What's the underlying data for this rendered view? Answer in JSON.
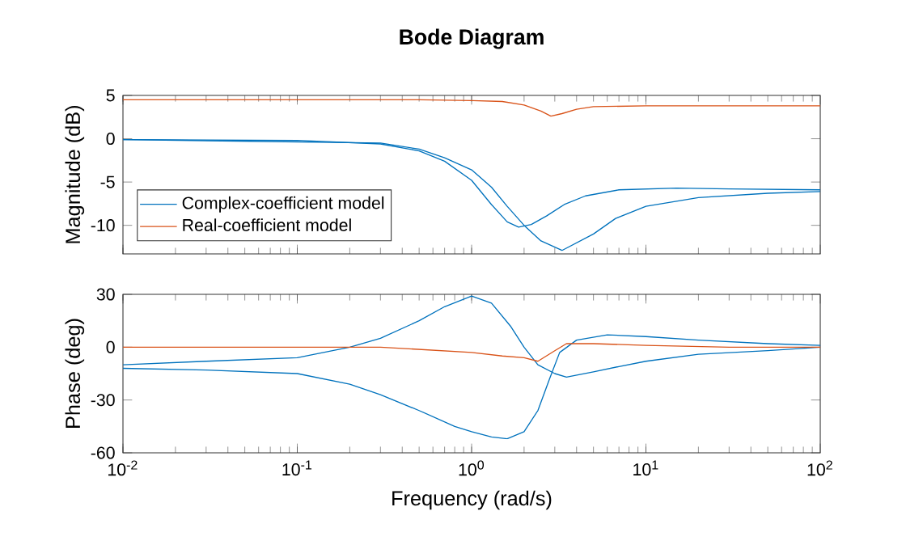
{
  "chart_data": [
    {
      "type": "line",
      "title": "Bode Diagram",
      "ylabel": "Magnitude (dB)",
      "xlim": [
        0.01,
        100
      ],
      "ylim": [
        -13.3,
        5
      ],
      "yticks": [
        -10,
        -5,
        0,
        5
      ],
      "log": "x",
      "xticks": [
        {
          "value": 0.01,
          "label": null
        },
        {
          "value": 0.1,
          "label": null
        },
        {
          "value": 1,
          "label": null
        },
        {
          "value": 10,
          "label": null
        },
        {
          "value": 100,
          "label": null
        }
      ],
      "tick_labels": "y",
      "legend": "bottom left",
      "grid": false,
      "series": [
        {
          "name": "Complex-coefficient model",
          "color": "#0072bd",
          "x": [
            0.01,
            0.1,
            0.3,
            0.5,
            0.7,
            1,
            1.3,
            1.6,
            1.86,
            2.2,
            2.7,
            3.4,
            4.5,
            7,
            15,
            30,
            100
          ],
          "values": [
            -0.1,
            -0.2,
            -0.6,
            -1.4,
            -2.6,
            -4.8,
            -7.6,
            -9.6,
            -10.2,
            -9.9,
            -8.9,
            -7.6,
            -6.6,
            -5.9,
            -5.7,
            -5.8,
            -5.9
          ]
        },
        {
          "color": "#0072bd",
          "x": [
            0.01,
            0.3,
            0.5,
            0.7,
            1,
            1.3,
            1.6,
            2,
            2.5,
            3.3,
            5,
            6.7,
            10,
            20,
            50,
            100
          ],
          "values": [
            -0.1,
            -0.5,
            -1.2,
            -2.2,
            -3.6,
            -5.6,
            -7.8,
            -10,
            -11.8,
            -12.9,
            -11,
            -9.2,
            -7.8,
            -6.8,
            -6.3,
            -6.1
          ]
        },
        {
          "name": "Real-coefficient model",
          "color": "#d95319",
          "x": [
            0.01,
            0.1,
            0.5,
            1,
            1.5,
            2,
            2.5,
            2.85,
            3.3,
            4,
            5,
            10,
            100
          ],
          "values": [
            4.5,
            4.5,
            4.5,
            4.4,
            4.3,
            3.9,
            3.2,
            2.6,
            2.9,
            3.4,
            3.7,
            3.8,
            3.8
          ]
        }
      ]
    },
    {
      "type": "line",
      "xlabel": "Frequency (rad/s)",
      "ylabel": "Phase (deg)",
      "xlim": [
        0.01,
        100
      ],
      "ylim": [
        -60,
        30
      ],
      "yticks": [
        -60,
        -30,
        0,
        30
      ],
      "log": "x",
      "xticks": [
        {
          "value": 0.01,
          "label": "10$^{-2}$"
        },
        {
          "value": 0.1,
          "label": "10$^{-1}$"
        },
        {
          "value": 1,
          "label": "10$^{0}$"
        },
        {
          "value": 10,
          "label": "10$^{1}$"
        },
        {
          "value": 100,
          "label": "10$^{2}$"
        }
      ],
      "grid": false,
      "series": [
        {
          "color": "#0072bd",
          "x": [
            0.01,
            0.03,
            0.1,
            0.2,
            0.3,
            0.5,
            0.7,
            1,
            1.3,
            1.67,
            2,
            2.4,
            3,
            3.5,
            5,
            7,
            10,
            20,
            50,
            100
          ],
          "values": [
            -10,
            -8,
            -6,
            0,
            5,
            15,
            23,
            29,
            25,
            12,
            0,
            -10,
            -15,
            -17,
            -14,
            -11,
            -8,
            -4,
            -2,
            0
          ]
        },
        {
          "color": "#0072bd",
          "x": [
            0.01,
            0.03,
            0.1,
            0.2,
            0.3,
            0.5,
            0.8,
            1,
            1.3,
            1.6,
            2,
            2.4,
            2.8,
            3.2,
            4,
            6,
            10,
            20,
            50,
            100
          ],
          "values": [
            -12,
            -13,
            -15,
            -21,
            -27,
            -36,
            -45,
            -48,
            -51,
            -52,
            -48,
            -36,
            -18,
            -3,
            4,
            7,
            6,
            4,
            2,
            1
          ]
        },
        {
          "color": "#d95319",
          "x": [
            0.01,
            0.3,
            1,
            1.5,
            2,
            2.4,
            3,
            3.5,
            5,
            10,
            30,
            100
          ],
          "values": [
            0,
            0,
            -3,
            -5,
            -6,
            -8,
            -2,
            2,
            2,
            1,
            0,
            0
          ]
        }
      ]
    }
  ]
}
